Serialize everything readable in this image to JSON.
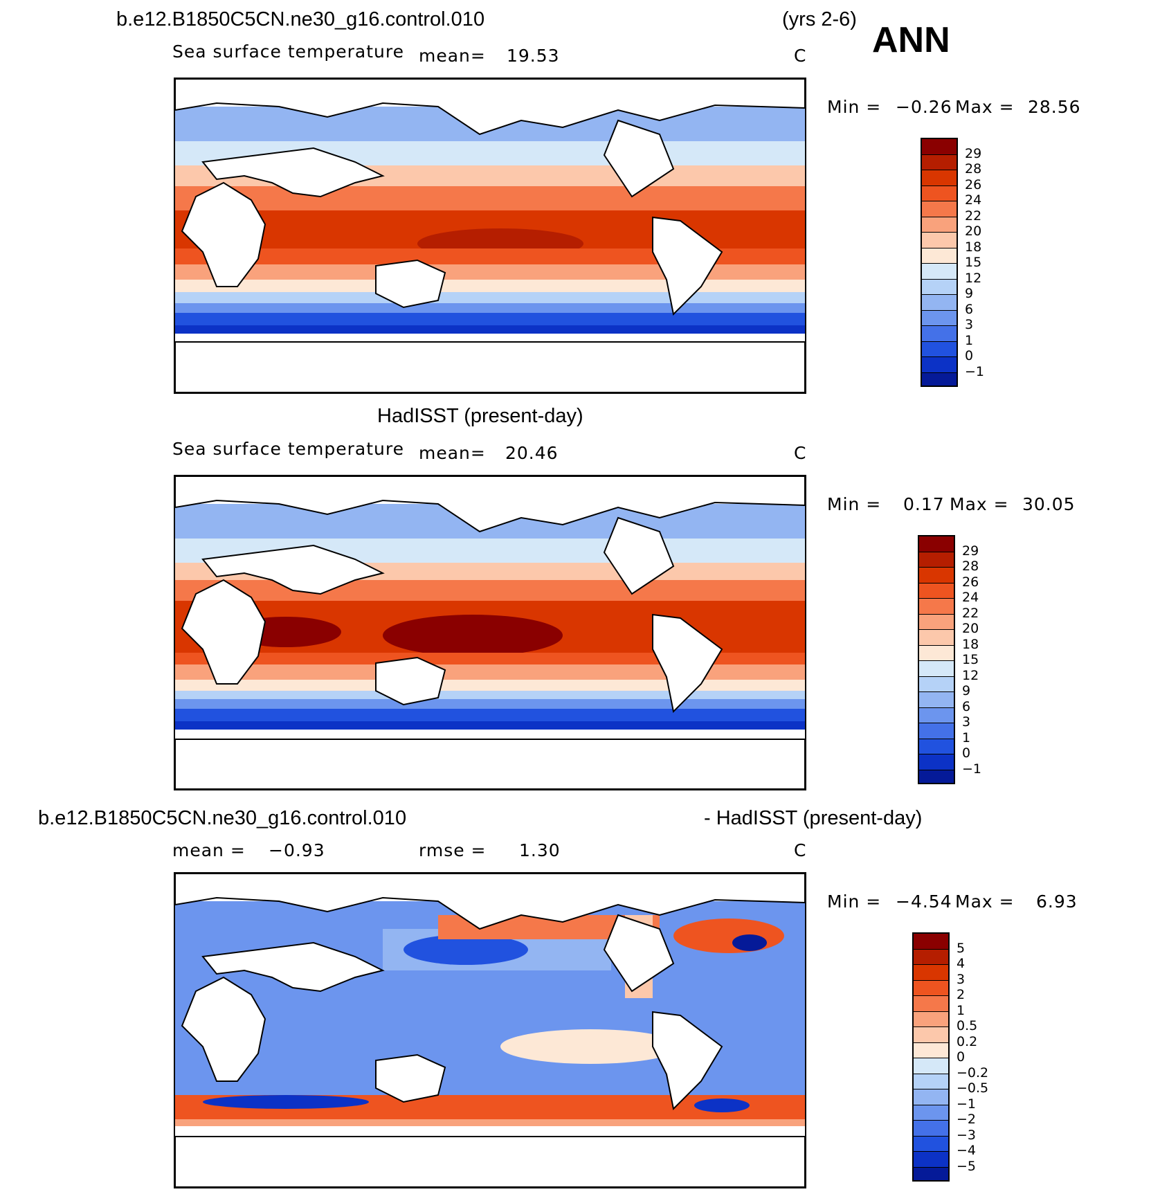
{
  "header": {
    "case_name": "b.e12.B1850C5CN.ne30_g16.control.010",
    "years": "(yrs 2-6)",
    "season": "ANN"
  },
  "panels": [
    {
      "title": "",
      "variable": "Sea surface temperature",
      "mean_label": "mean=",
      "mean_value": "19.53",
      "units": "C",
      "min_label": "Min =",
      "min_value": "−0.26",
      "max_label": "Max =",
      "max_value": "28.56",
      "colorbar_labels": [
        "29",
        "28",
        "26",
        "24",
        "22",
        "20",
        "18",
        "15",
        "12",
        "9",
        "6",
        "3",
        "1",
        "0",
        "−1"
      ],
      "colorbar_colors": [
        "#8a0000",
        "#b51e00",
        "#d93600",
        "#ee5420",
        "#f5784a",
        "#f9a27c",
        "#fcc8ab",
        "#fde8d6",
        "#d5e8f8",
        "#b5d2f7",
        "#93b5f2",
        "#6c95ee",
        "#4471e8",
        "#2152df",
        "#0c32c6",
        "#051a98"
      ]
    },
    {
      "title": "HadISST (present-day)",
      "variable": "Sea surface temperature",
      "mean_label": "mean=",
      "mean_value": "20.46",
      "units": "C",
      "min_label": "Min =",
      "min_value": "0.17",
      "max_label": "Max =",
      "max_value": "30.05",
      "colorbar_labels": [
        "29",
        "28",
        "26",
        "24",
        "22",
        "20",
        "18",
        "15",
        "12",
        "9",
        "6",
        "3",
        "1",
        "0",
        "−1"
      ],
      "colorbar_colors": [
        "#8a0000",
        "#b51e00",
        "#d93600",
        "#ee5420",
        "#f5784a",
        "#f9a27c",
        "#fcc8ab",
        "#fde8d6",
        "#d5e8f8",
        "#b5d2f7",
        "#93b5f2",
        "#6c95ee",
        "#4471e8",
        "#2152df",
        "#0c32c6",
        "#051a98"
      ]
    },
    {
      "title_left": "b.e12.B1850C5CN.ne30_g16.control.010",
      "title_right": "- HadISST (present-day)",
      "mean_label": "mean =",
      "mean_value": "−0.93",
      "rmse_label": "rmse =",
      "rmse_value": "1.30",
      "units": "C",
      "min_label": "Min =",
      "min_value": "−4.54",
      "max_label": "Max =",
      "max_value": "6.93",
      "colorbar_labels": [
        "5",
        "4",
        "3",
        "2",
        "1",
        "0.5",
        "0.2",
        "0",
        "−0.2",
        "−0.5",
        "−1",
        "−2",
        "−3",
        "−4",
        "−5"
      ],
      "colorbar_colors": [
        "#8a0000",
        "#b51e00",
        "#d93600",
        "#ee5420",
        "#f5784a",
        "#f9a27c",
        "#fcc8ab",
        "#fde8d6",
        "#d5e8f8",
        "#b5d2f7",
        "#93b5f2",
        "#6c95ee",
        "#4471e8",
        "#2152df",
        "#0c32c6",
        "#051a98"
      ]
    }
  ]
}
